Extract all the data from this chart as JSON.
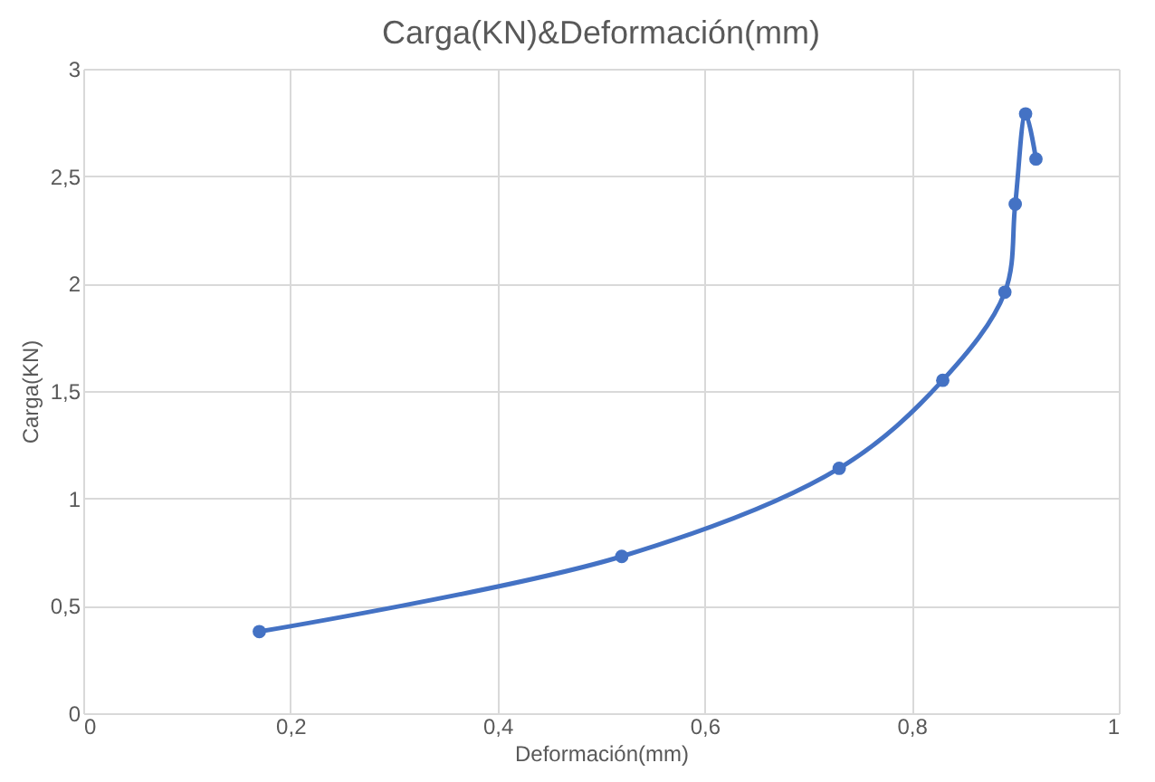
{
  "chart_data": {
    "type": "line",
    "title": "Carga(KN)&Deformación(mm)",
    "xlabel": "Deformación(mm)",
    "ylabel": "Carga(KN)",
    "x": [
      0.17,
      0.52,
      0.73,
      0.83,
      0.89,
      0.9,
      0.91,
      0.92
    ],
    "series": [
      {
        "color": "#4472c4",
        "values": [
          0.38,
          0.73,
          1.14,
          1.55,
          1.96,
          2.37,
          2.79,
          2.58
        ]
      }
    ],
    "xlim": [
      0,
      1
    ],
    "xticks": [
      {
        "value": 0,
        "label": "0"
      },
      {
        "value": 0.2,
        "label": "0,2"
      },
      {
        "value": 0.4,
        "label": "0,4"
      },
      {
        "value": 0.6,
        "label": "0,6"
      },
      {
        "value": 0.8,
        "label": "0,8"
      },
      {
        "value": 1,
        "label": "1"
      }
    ],
    "ylim": [
      0,
      3
    ],
    "yticks": [
      {
        "value": 0,
        "label": "0"
      },
      {
        "value": 0.5,
        "label": "0,5"
      },
      {
        "value": 1,
        "label": "1"
      },
      {
        "value": 1.5,
        "label": "1,5"
      },
      {
        "value": 2,
        "label": "2"
      },
      {
        "value": 2.5,
        "label": "2,5"
      },
      {
        "value": 3,
        "label": "3"
      }
    ],
    "grid": true,
    "marker": "circle",
    "line_style": "solid"
  }
}
